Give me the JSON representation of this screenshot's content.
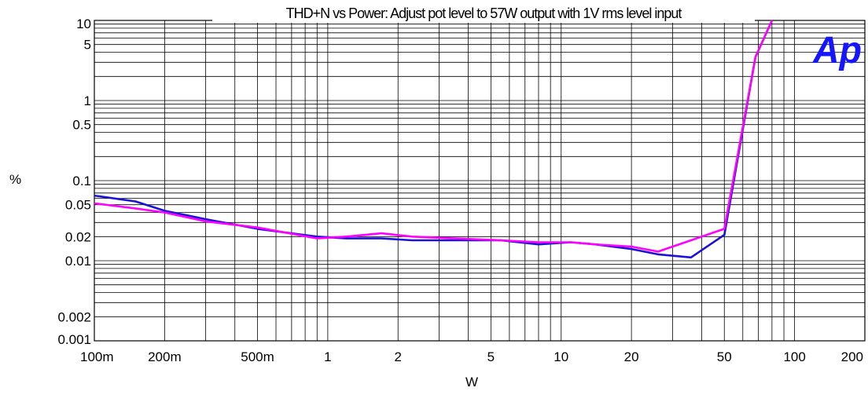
{
  "chart_data": {
    "type": "line",
    "title": "THD+N vs Power: Adjust pot level to 57W output with 1V rms level input",
    "xlabel": "W",
    "ylabel": "%",
    "x_scale": "log",
    "y_scale": "log",
    "xlim": [
      0.1,
      200
    ],
    "ylim": [
      0.001,
      10
    ],
    "grid": true,
    "x_ticks": [
      {
        "value": 0.1,
        "label": "100m"
      },
      {
        "value": 0.2,
        "label": "200m"
      },
      {
        "value": 0.5,
        "label": "500m"
      },
      {
        "value": 1,
        "label": "1"
      },
      {
        "value": 2,
        "label": "2"
      },
      {
        "value": 5,
        "label": "5"
      },
      {
        "value": 10,
        "label": "10"
      },
      {
        "value": 20,
        "label": "20"
      },
      {
        "value": 50,
        "label": "50"
      },
      {
        "value": 100,
        "label": "100"
      },
      {
        "value": 200,
        "label": "200"
      }
    ],
    "y_ticks": [
      {
        "value": 10,
        "label": "10"
      },
      {
        "value": 5,
        "label": "5"
      },
      {
        "value": 1,
        "label": "1"
      },
      {
        "value": 0.5,
        "label": "0.5"
      },
      {
        "value": 0.1,
        "label": "0.1"
      },
      {
        "value": 0.05,
        "label": "0.05"
      },
      {
        "value": 0.02,
        "label": "0.02"
      },
      {
        "value": 0.01,
        "label": "0.01"
      },
      {
        "value": 0.002,
        "label": "0.002"
      },
      {
        "value": 0.001,
        "label": "0.001"
      }
    ],
    "series": [
      {
        "color": "#1a12d6",
        "x": [
          0.1,
          0.15,
          0.2,
          0.3,
          0.5,
          0.9,
          1.2,
          1.7,
          2.3,
          3.5,
          5.5,
          8,
          11,
          14,
          20,
          26,
          36,
          50,
          68,
          80
        ],
        "y": [
          0.065,
          0.055,
          0.042,
          0.033,
          0.025,
          0.02,
          0.019,
          0.019,
          0.018,
          0.018,
          0.018,
          0.016,
          0.017,
          0.016,
          0.014,
          0.012,
          0.011,
          0.021,
          3.5,
          10
        ]
      },
      {
        "color": "#ff00ff",
        "x": [
          0.1,
          0.15,
          0.2,
          0.3,
          0.5,
          0.9,
          1.2,
          1.7,
          2.3,
          3.5,
          5.5,
          8,
          11,
          14,
          20,
          26,
          36,
          50,
          68,
          80
        ],
        "y": [
          0.052,
          0.045,
          0.04,
          0.031,
          0.026,
          0.019,
          0.02,
          0.022,
          0.02,
          0.019,
          0.018,
          0.017,
          0.017,
          0.016,
          0.015,
          0.013,
          0.018,
          0.025,
          3.5,
          10
        ]
      }
    ]
  },
  "logo": {
    "text": "Ap"
  }
}
